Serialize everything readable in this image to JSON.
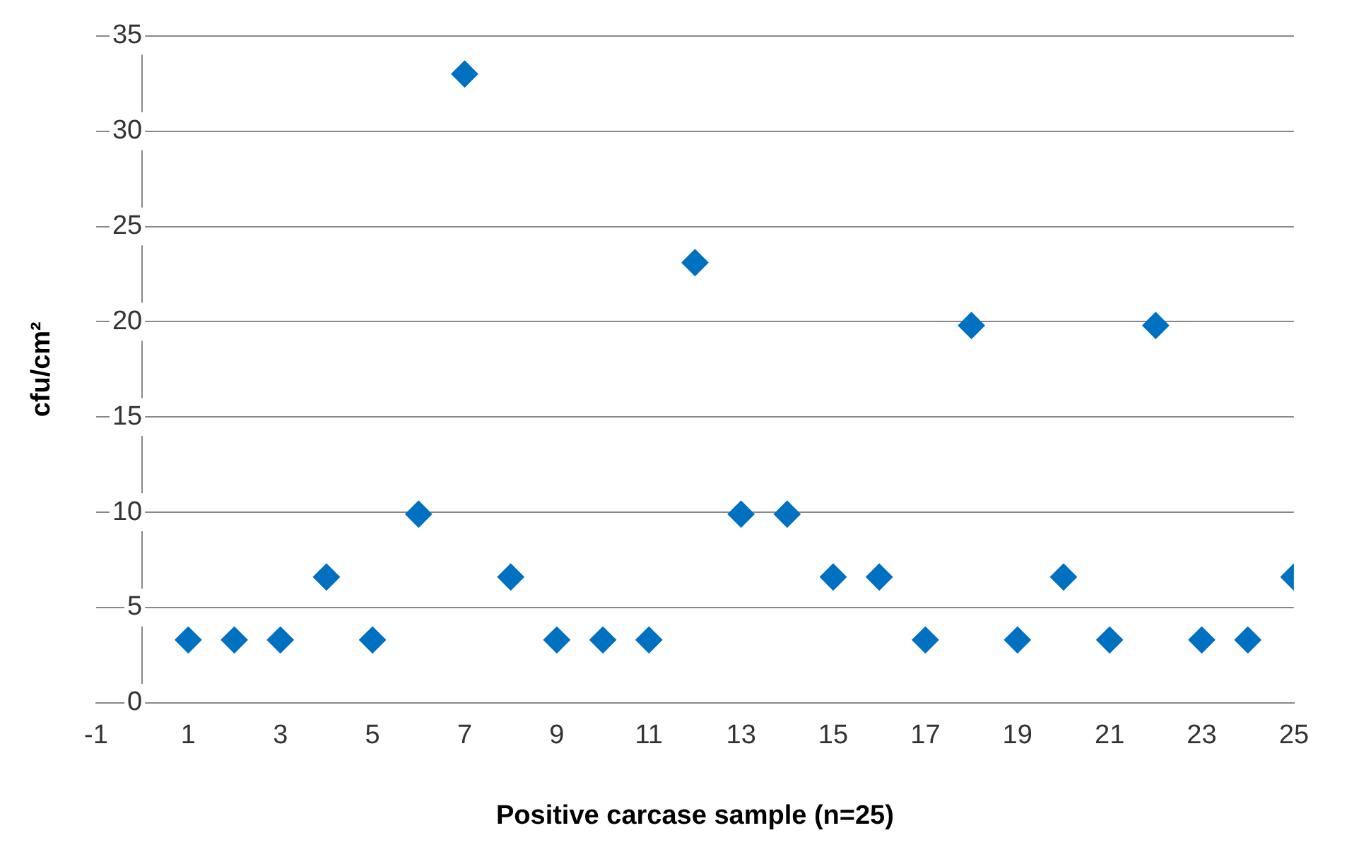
{
  "chart_data": {
    "type": "scatter",
    "xlabel": "Positive carcase sample (n=25)",
    "ylabel": "cfu/cm²",
    "x": [
      1,
      2,
      3,
      4,
      5,
      6,
      7,
      8,
      9,
      10,
      11,
      12,
      13,
      14,
      15,
      16,
      17,
      18,
      19,
      20,
      21,
      22,
      23,
      24,
      25
    ],
    "series": [
      {
        "color": "#0070c0",
        "values": [
          3.3,
          3.3,
          3.3,
          6.6,
          3.3,
          9.9,
          33,
          6.6,
          3.3,
          3.3,
          3.3,
          23.1,
          9.9,
          9.9,
          6.6,
          6.6,
          3.3,
          19.8,
          3.3,
          6.6,
          3.3,
          19.8,
          3.3,
          3.3,
          6.6
        ]
      }
    ],
    "xlim": [
      -1,
      25
    ],
    "xticks": [
      -1,
      1,
      3,
      5,
      7,
      9,
      11,
      13,
      15,
      17,
      19,
      21,
      23,
      25
    ],
    "ylim": [
      0,
      35
    ],
    "yticks": [
      0,
      5,
      10,
      15,
      20,
      25,
      30,
      35
    ],
    "grid": "y",
    "legend": false,
    "marker": "diamond"
  }
}
